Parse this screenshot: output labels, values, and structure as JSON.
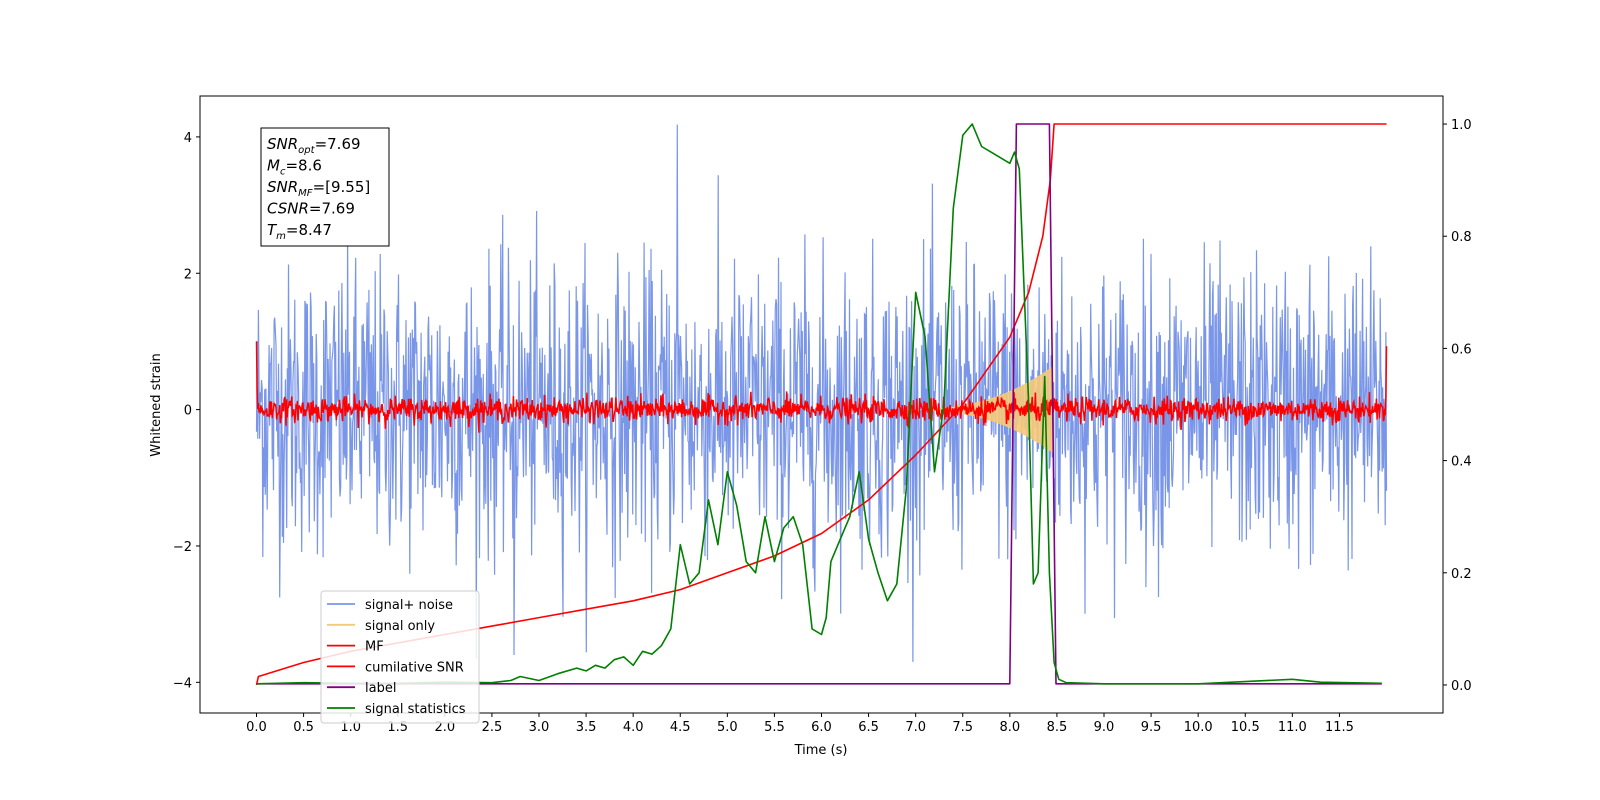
{
  "chart_data": {
    "type": "line",
    "xlabel": "Time (s)",
    "ylabel": "Whitened strain",
    "x_ticks": [
      "0.0",
      "0.5",
      "1.0",
      "1.5",
      "2.0",
      "2.5",
      "3.0",
      "3.5",
      "4.0",
      "4.5",
      "5.0",
      "5.5",
      "6.0",
      "6.5",
      "7.0",
      "7.5",
      "8.0",
      "8.5",
      "9.0",
      "9.5",
      "10.0",
      "10.5",
      "11.0",
      "11.5"
    ],
    "xlim": [
      -0.6,
      12.6
    ],
    "ylim_left": [
      -4.45,
      4.6
    ],
    "y_ticks_left": [
      "4",
      "2",
      "0",
      "−2",
      "−4"
    ],
    "ylim_right": [
      -0.05,
      1.05
    ],
    "y_ticks_right": [
      "1.0",
      "0.8",
      "0.6",
      "0.4",
      "0.2",
      "0.0"
    ],
    "grid": false,
    "legend_position": "lower-left",
    "info_box": {
      "lines": [
        {
          "var": "SNR",
          "sub": "opt",
          "value": "=7.69"
        },
        {
          "var": "M",
          "sub": "c",
          "value": "=8.6"
        },
        {
          "var": "SNR",
          "sub": "MF",
          "value": "=[9.55]"
        },
        {
          "var": "CSNR",
          "sub": "",
          "value": "=7.69"
        },
        {
          "var": "T",
          "sub": "m",
          "value": "=8.47"
        }
      ]
    },
    "series": [
      {
        "name": "signal+ noise",
        "color": "#7a96e8",
        "axis": "left",
        "kind": "noise",
        "t_start": 0.0,
        "t_end": 12.0,
        "samples": 1800,
        "sigma": 1.05,
        "peak": 4.18,
        "trough": -3.6
      },
      {
        "name": "signal only",
        "color": "#f5c97a",
        "axis": "left",
        "kind": "chirp_envelope",
        "t_start": 6.9,
        "t_end": 8.45,
        "peak_amplitude": 0.62
      },
      {
        "name": "MF",
        "color": "#ff0000",
        "axis": "left",
        "kind": "noise",
        "t_start": 0.0,
        "t_end": 12.0,
        "samples": 1800,
        "sigma": 0.09,
        "edge_start": 1.0,
        "edge_end": 0.93
      },
      {
        "name": "cumilative SNR",
        "color": "#ff0000",
        "axis": "right",
        "x": [
          0.0,
          0.02,
          0.5,
          1.0,
          1.5,
          2.0,
          2.5,
          3.0,
          3.5,
          4.0,
          4.5,
          5.0,
          5.5,
          6.0,
          6.5,
          7.0,
          7.5,
          8.0,
          8.2,
          8.35,
          8.43,
          8.47,
          12.0
        ],
        "values": [
          0.0,
          0.015,
          0.04,
          0.06,
          0.075,
          0.09,
          0.105,
          0.12,
          0.135,
          0.15,
          0.17,
          0.2,
          0.23,
          0.27,
          0.33,
          0.41,
          0.5,
          0.62,
          0.7,
          0.8,
          0.9,
          1.0,
          1.0
        ]
      },
      {
        "name": "label",
        "color": "#800080",
        "axis": "right",
        "x": [
          0.0,
          8.0,
          8.07,
          8.42,
          8.49,
          11.95
        ],
        "values": [
          0.002,
          0.002,
          1.0,
          1.0,
          0.002,
          0.002
        ]
      },
      {
        "name": "signal statistics",
        "color": "#008000",
        "axis": "right",
        "x": [
          0.0,
          0.5,
          1.0,
          1.5,
          2.0,
          2.5,
          2.7,
          2.8,
          3.0,
          3.2,
          3.4,
          3.5,
          3.6,
          3.7,
          3.8,
          3.9,
          4.0,
          4.1,
          4.2,
          4.3,
          4.4,
          4.5,
          4.6,
          4.7,
          4.8,
          4.9,
          5.0,
          5.1,
          5.2,
          5.3,
          5.4,
          5.5,
          5.6,
          5.7,
          5.8,
          5.9,
          6.0,
          6.05,
          6.1,
          6.2,
          6.3,
          6.4,
          6.5,
          6.6,
          6.7,
          6.8,
          6.9,
          7.0,
          7.1,
          7.2,
          7.3,
          7.4,
          7.5,
          7.6,
          7.7,
          7.8,
          7.9,
          8.0,
          8.05,
          8.1,
          8.2,
          8.25,
          8.3,
          8.37,
          8.42,
          8.47,
          8.52,
          8.6,
          9.0,
          10.0,
          11.0,
          11.3,
          11.95
        ],
        "values": [
          0.002,
          0.004,
          0.003,
          0.003,
          0.005,
          0.004,
          0.008,
          0.015,
          0.008,
          0.02,
          0.03,
          0.025,
          0.035,
          0.03,
          0.045,
          0.05,
          0.035,
          0.06,
          0.055,
          0.07,
          0.1,
          0.25,
          0.18,
          0.2,
          0.33,
          0.25,
          0.38,
          0.32,
          0.22,
          0.2,
          0.3,
          0.22,
          0.28,
          0.3,
          0.25,
          0.1,
          0.09,
          0.12,
          0.22,
          0.26,
          0.3,
          0.38,
          0.26,
          0.2,
          0.15,
          0.18,
          0.35,
          0.7,
          0.62,
          0.38,
          0.5,
          0.85,
          0.98,
          1.0,
          0.96,
          0.95,
          0.94,
          0.93,
          0.95,
          0.92,
          0.5,
          0.18,
          0.2,
          0.55,
          0.2,
          0.04,
          0.01,
          0.004,
          0.002,
          0.002,
          0.01,
          0.005,
          0.003
        ]
      }
    ]
  }
}
